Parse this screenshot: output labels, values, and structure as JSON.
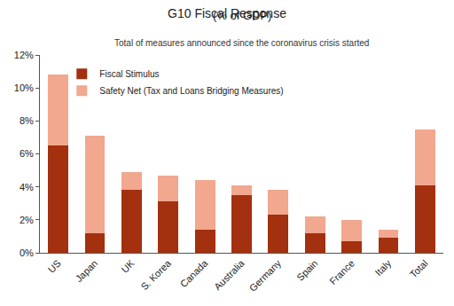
{
  "chart_data": {
    "type": "bar",
    "stacked": true,
    "title": "G10 Fiscal Response",
    "subtitle": "(% of GDP)",
    "annotations": [
      "Total of measures announced since the coronavirus crisis started"
    ],
    "categories": [
      "US",
      "Japan",
      "UK",
      "S. Korea",
      "Canada",
      "Australia",
      "Germany",
      "Spain",
      "France",
      "Italy",
      "Total"
    ],
    "series": [
      {
        "name": "Fiscal Stimulus",
        "color": "#a3300e",
        "values": [
          6.5,
          1.2,
          3.8,
          3.1,
          1.4,
          3.5,
          2.3,
          1.2,
          0.7,
          0.9,
          4.1
        ]
      },
      {
        "name": "Safety Net (Tax and Loans Bridging Measures)",
        "color": "#f2a78f",
        "values": [
          4.3,
          5.9,
          1.1,
          1.6,
          3.0,
          0.6,
          1.5,
          1.0,
          1.3,
          0.5,
          3.4
        ]
      }
    ],
    "ylim": [
      0,
      12
    ],
    "yticks": [
      {
        "value": 0,
        "label": "0%"
      },
      {
        "value": 2,
        "label": "2%"
      },
      {
        "value": 4,
        "label": "4%"
      },
      {
        "value": 6,
        "label": "6%"
      },
      {
        "value": 8,
        "label": "8%"
      },
      {
        "value": 10,
        "label": "10%"
      },
      {
        "value": 12,
        "label": "12%"
      }
    ],
    "grid": false,
    "legend": "upper left",
    "data_labels": false
  }
}
